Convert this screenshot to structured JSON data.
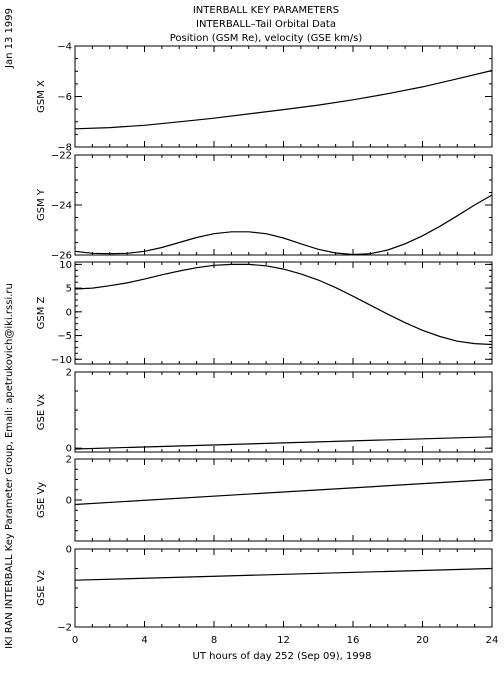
{
  "header": {
    "title_lines": [
      "INTERBALL KEY PARAMETERS",
      "INTERBALL–Tail Orbital Data",
      "Position (GSM Re), velocity (GSE km/s)"
    ],
    "date_stamp": "Jan 13 1999",
    "credit": "IKI RAN INTERBALL Key Parameter Group, Email: apetrukovich@iki.rssi.ru"
  },
  "chart_data": [
    {
      "type": "line",
      "ylabel": "GSM X",
      "xlim": [
        0,
        24
      ],
      "ylim": [
        -8,
        -4
      ],
      "yticks": [
        -8,
        -6,
        -4
      ],
      "ytick_labels": [
        "−8",
        "−6",
        "−4"
      ],
      "series": [
        {
          "x": [
            0,
            2,
            4,
            6,
            8,
            10,
            12,
            14,
            16,
            18,
            20,
            22,
            24
          ],
          "y": [
            -7.28,
            -7.23,
            -7.14,
            -7.0,
            -6.86,
            -6.69,
            -6.52,
            -6.34,
            -6.13,
            -5.89,
            -5.62,
            -5.3,
            -4.97
          ]
        }
      ]
    },
    {
      "type": "line",
      "ylabel": "GSM Y",
      "xlim": [
        0,
        24
      ],
      "ylim": [
        -26,
        -22
      ],
      "yticks": [
        -26,
        -24,
        -22
      ],
      "ytick_labels": [
        "−26",
        "−24",
        "−22"
      ],
      "series": [
        {
          "x": [
            0,
            1,
            2,
            3,
            4,
            5,
            6,
            7,
            8,
            9,
            10,
            11,
            12,
            13,
            14,
            15,
            16,
            17,
            18,
            19,
            20,
            21,
            22,
            23,
            24
          ],
          "y": [
            -25.85,
            -25.93,
            -25.95,
            -25.93,
            -25.85,
            -25.7,
            -25.5,
            -25.3,
            -25.15,
            -25.07,
            -25.07,
            -25.15,
            -25.32,
            -25.55,
            -25.77,
            -25.92,
            -25.98,
            -25.95,
            -25.8,
            -25.55,
            -25.23,
            -24.85,
            -24.43,
            -24.0,
            -23.6
          ]
        }
      ]
    },
    {
      "type": "line",
      "ylabel": "GSM Z",
      "xlim": [
        0,
        24
      ],
      "ylim": [
        -11,
        10.5
      ],
      "yticks": [
        -10,
        -5,
        0,
        5,
        10
      ],
      "ytick_labels": [
        "−10",
        "−5",
        "0",
        "5",
        "10"
      ],
      "series": [
        {
          "x": [
            0,
            1,
            2,
            3,
            4,
            5,
            6,
            7,
            8,
            9,
            10,
            11,
            12,
            13,
            14,
            15,
            16,
            17,
            18,
            19,
            20,
            21,
            22,
            23,
            24
          ],
          "y": [
            4.8,
            5.0,
            5.5,
            6.1,
            6.9,
            7.8,
            8.6,
            9.3,
            9.8,
            10.0,
            10.0,
            9.7,
            9.0,
            8.0,
            6.7,
            5.1,
            3.3,
            1.4,
            -0.5,
            -2.3,
            -3.9,
            -5.2,
            -6.2,
            -6.7,
            -6.9
          ]
        }
      ]
    },
    {
      "type": "line",
      "ylabel": "GSE Vx",
      "xlim": [
        0,
        24
      ],
      "ylim": [
        -0.1,
        2.0
      ],
      "yticks": [
        0,
        2
      ],
      "ytick_labels": [
        "0",
        "2"
      ],
      "series": [
        {
          "x": [
            0,
            24
          ],
          "y": [
            -0.02,
            0.3
          ]
        }
      ]
    },
    {
      "type": "line",
      "ylabel": "GSE Vy",
      "xlim": [
        0,
        24
      ],
      "ylim": [
        -2,
        2
      ],
      "yticks": [
        0,
        2
      ],
      "ytick_labels": [
        "0",
        "2"
      ],
      "series": [
        {
          "x": [
            0,
            24
          ],
          "y": [
            -0.22,
            1.0
          ]
        }
      ]
    },
    {
      "type": "line",
      "ylabel": "GSE Vz",
      "xlim": [
        0,
        24
      ],
      "ylim": [
        -2,
        0
      ],
      "yticks": [
        -2,
        0
      ],
      "ytick_labels": [
        "−2",
        "0"
      ],
      "series": [
        {
          "x": [
            0,
            24
          ],
          "y": [
            -0.8,
            -0.5
          ]
        }
      ]
    }
  ],
  "xaxis": {
    "xlabel": "UT hours of day 252 (Sep 09), 1998",
    "ticks": [
      0,
      4,
      8,
      12,
      16,
      20,
      24
    ],
    "tick_labels": [
      "0",
      "4",
      "8",
      "12",
      "16",
      "20",
      "24"
    ]
  }
}
